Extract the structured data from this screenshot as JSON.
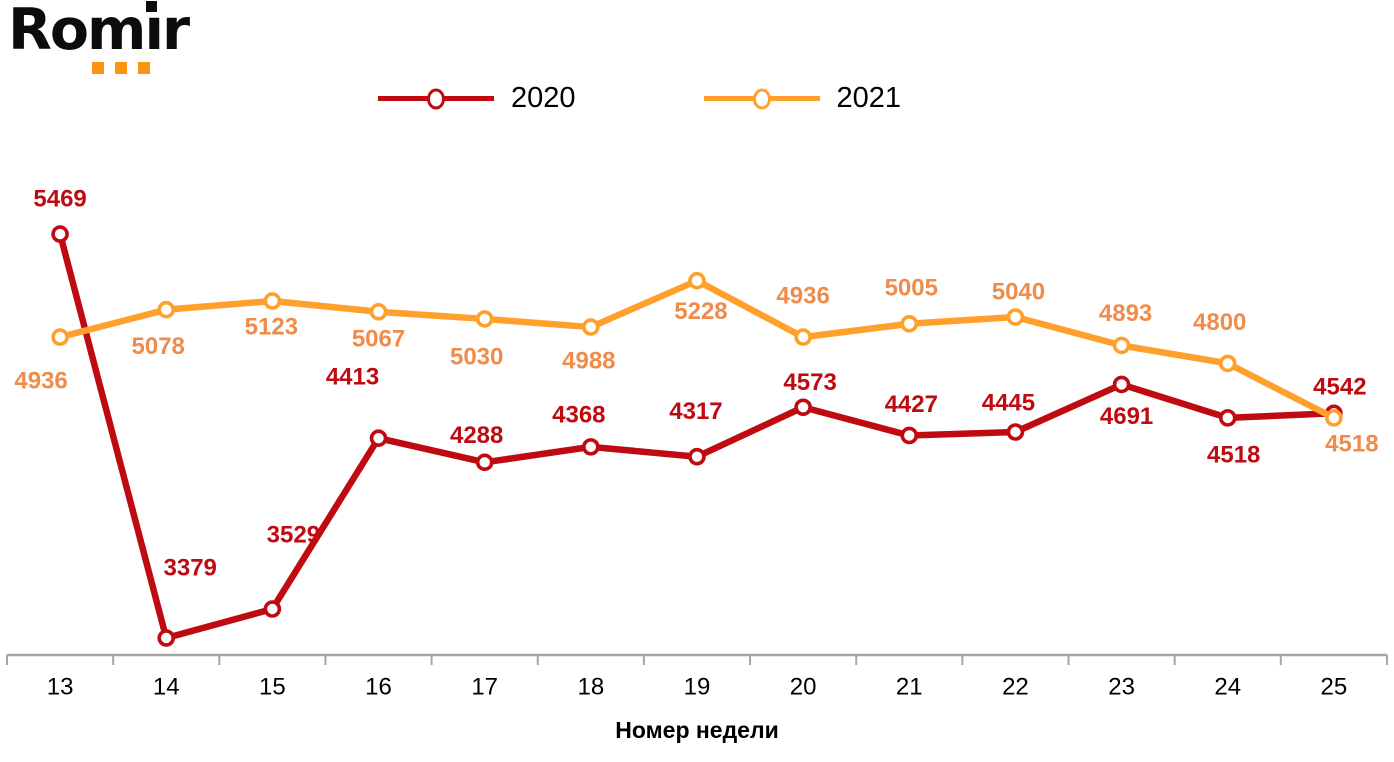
{
  "logo": {
    "text": "Romir",
    "text_pre_i": "Rom",
    "text_i": "ı",
    "text_post_i": "r",
    "accent_color": "#FB9410"
  },
  "chart_data": {
    "type": "line",
    "title": "",
    "xlabel": "Номер недели",
    "ylabel": "",
    "x": [
      13,
      14,
      15,
      16,
      17,
      18,
      19,
      20,
      21,
      22,
      23,
      24,
      25
    ],
    "series": [
      {
        "name": "2020",
        "color": "#BE0A10",
        "label_color": "#BE0A10",
        "values": [
          5469,
          3379,
          3529,
          4413,
          4288,
          4368,
          4317,
          4573,
          4427,
          4445,
          4691,
          4518,
          4542
        ]
      },
      {
        "name": "2021",
        "color": "#FFA02D",
        "label_color": "#F08C4B",
        "values": [
          4936,
          5078,
          5123,
          5067,
          5030,
          4988,
          5228,
          4936,
          5005,
          5040,
          4893,
          4800,
          4518
        ]
      }
    ],
    "ylim": [
      3291,
      5749
    ],
    "grid": false,
    "y_axis_visible": false,
    "legend_position": "top",
    "point_labels": true,
    "axis_color": "#A6A6A6",
    "tick_label_color": "#000000"
  }
}
